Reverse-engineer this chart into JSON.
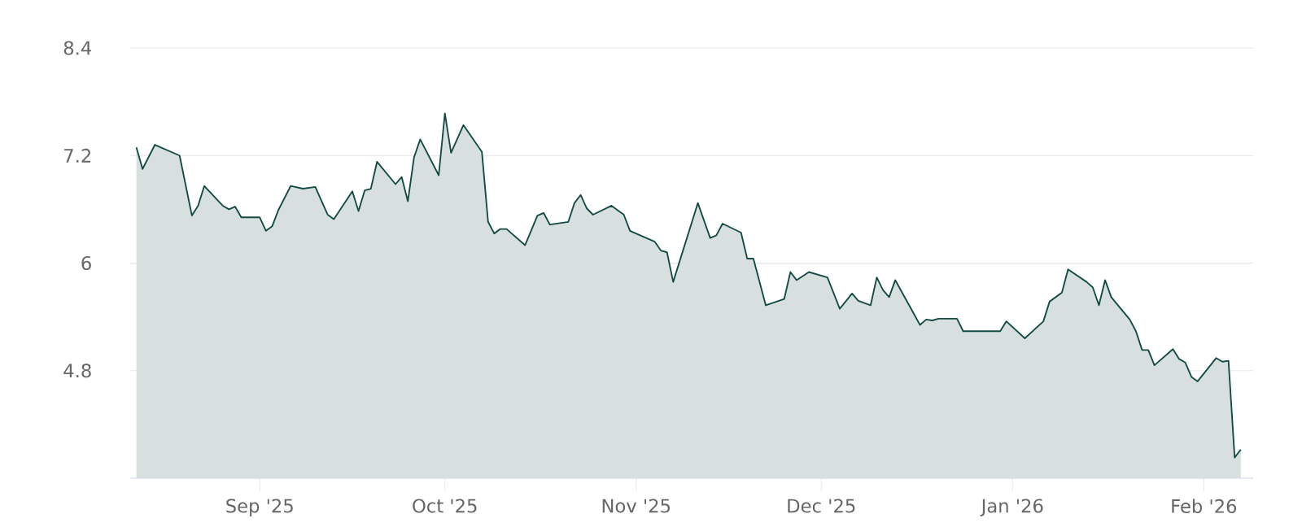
{
  "chart_data": {
    "type": "area",
    "x": [
      "2025-08-12",
      "2025-08-13",
      "2025-08-15",
      "2025-08-19",
      "2025-08-21",
      "2025-08-22",
      "2025-08-23",
      "2025-08-26",
      "2025-08-27",
      "2025-08-28",
      "2025-08-29",
      "2025-09-01",
      "2025-09-02",
      "2025-09-03",
      "2025-09-04",
      "2025-09-06",
      "2025-09-08",
      "2025-09-10",
      "2025-09-12",
      "2025-09-13",
      "2025-09-16",
      "2025-09-17",
      "2025-09-18",
      "2025-09-19",
      "2025-09-20",
      "2025-09-23",
      "2025-09-24",
      "2025-09-25",
      "2025-09-26",
      "2025-09-27",
      "2025-09-30",
      "2025-10-01",
      "2025-10-02",
      "2025-10-04",
      "2025-10-07",
      "2025-10-08",
      "2025-10-09",
      "2025-10-10",
      "2025-10-11",
      "2025-10-14",
      "2025-10-16",
      "2025-10-17",
      "2025-10-18",
      "2025-10-21",
      "2025-10-22",
      "2025-10-23",
      "2025-10-24",
      "2025-10-25",
      "2025-10-28",
      "2025-10-29",
      "2025-10-30",
      "2025-10-31",
      "2025-11-04",
      "2025-11-05",
      "2025-11-06",
      "2025-11-07",
      "2025-11-11",
      "2025-11-13",
      "2025-11-14",
      "2025-11-15",
      "2025-11-18",
      "2025-11-19",
      "2025-11-20",
      "2025-11-22",
      "2025-11-25",
      "2025-11-26",
      "2025-11-27",
      "2025-11-29",
      "2025-12-02",
      "2025-12-04",
      "2025-12-06",
      "2025-12-07",
      "2025-12-09",
      "2025-12-10",
      "2025-12-11",
      "2025-12-12",
      "2025-12-13",
      "2025-12-17",
      "2025-12-18",
      "2025-12-19",
      "2025-12-20",
      "2025-12-23",
      "2025-12-24",
      "2025-12-30",
      "2025-12-31",
      "2026-01-03",
      "2026-01-06",
      "2026-01-07",
      "2026-01-09",
      "2026-01-10",
      "2026-01-13",
      "2026-01-14",
      "2026-01-15",
      "2026-01-16",
      "2026-01-17",
      "2026-01-20",
      "2026-01-21",
      "2026-01-22",
      "2026-01-23",
      "2026-01-24",
      "2026-01-27",
      "2026-01-28",
      "2026-01-29",
      "2026-01-30",
      "2026-01-31",
      "2026-02-03",
      "2026-02-04",
      "2026-02-05",
      "2026-02-06",
      "2026-02-07"
    ],
    "series": [
      {
        "color": "#134a44",
        "values": [
          7.29,
          7.05,
          7.32,
          7.2,
          6.53,
          6.64,
          6.86,
          6.64,
          6.6,
          6.63,
          6.51,
          6.51,
          6.36,
          6.41,
          6.59,
          6.86,
          6.83,
          6.85,
          6.54,
          6.49,
          6.8,
          6.58,
          6.81,
          6.83,
          7.13,
          6.88,
          6.96,
          6.69,
          7.18,
          7.38,
          6.98,
          7.67,
          7.23,
          7.54,
          7.24,
          6.46,
          6.33,
          6.38,
          6.38,
          6.2,
          6.53,
          6.56,
          6.43,
          6.46,
          6.67,
          6.76,
          6.61,
          6.54,
          6.64,
          6.59,
          6.54,
          6.36,
          6.24,
          6.14,
          6.12,
          5.79,
          6.67,
          6.28,
          6.31,
          6.44,
          6.34,
          6.05,
          6.05,
          5.53,
          5.6,
          5.9,
          5.81,
          5.9,
          5.84,
          5.49,
          5.66,
          5.58,
          5.53,
          5.84,
          5.7,
          5.62,
          5.81,
          5.31,
          5.37,
          5.36,
          5.38,
          5.38,
          5.24,
          5.24,
          5.35,
          5.16,
          5.35,
          5.57,
          5.67,
          5.93,
          5.79,
          5.73,
          5.53,
          5.81,
          5.62,
          5.37,
          5.24,
          5.03,
          5.03,
          4.86,
          5.04,
          4.93,
          4.89,
          4.73,
          4.68,
          4.94,
          4.9,
          4.91,
          3.83,
          3.92
        ]
      }
    ],
    "xlim": [
      "2025-08-11",
      "2026-02-09"
    ],
    "xticks": [
      {
        "value": "2025-09-01",
        "label": "Sep '25"
      },
      {
        "value": "2025-10-01",
        "label": "Oct '25"
      },
      {
        "value": "2025-11-01",
        "label": "Nov '25"
      },
      {
        "value": "2025-12-01",
        "label": "Dec '25"
      },
      {
        "value": "2026-01-01",
        "label": "Jan '26"
      },
      {
        "value": "2026-02-01",
        "label": "Feb '26"
      }
    ],
    "ylim": [
      3.6,
      8.4
    ],
    "yticks": [
      4.8,
      6,
      7.2,
      8.4
    ],
    "grid": "y"
  }
}
